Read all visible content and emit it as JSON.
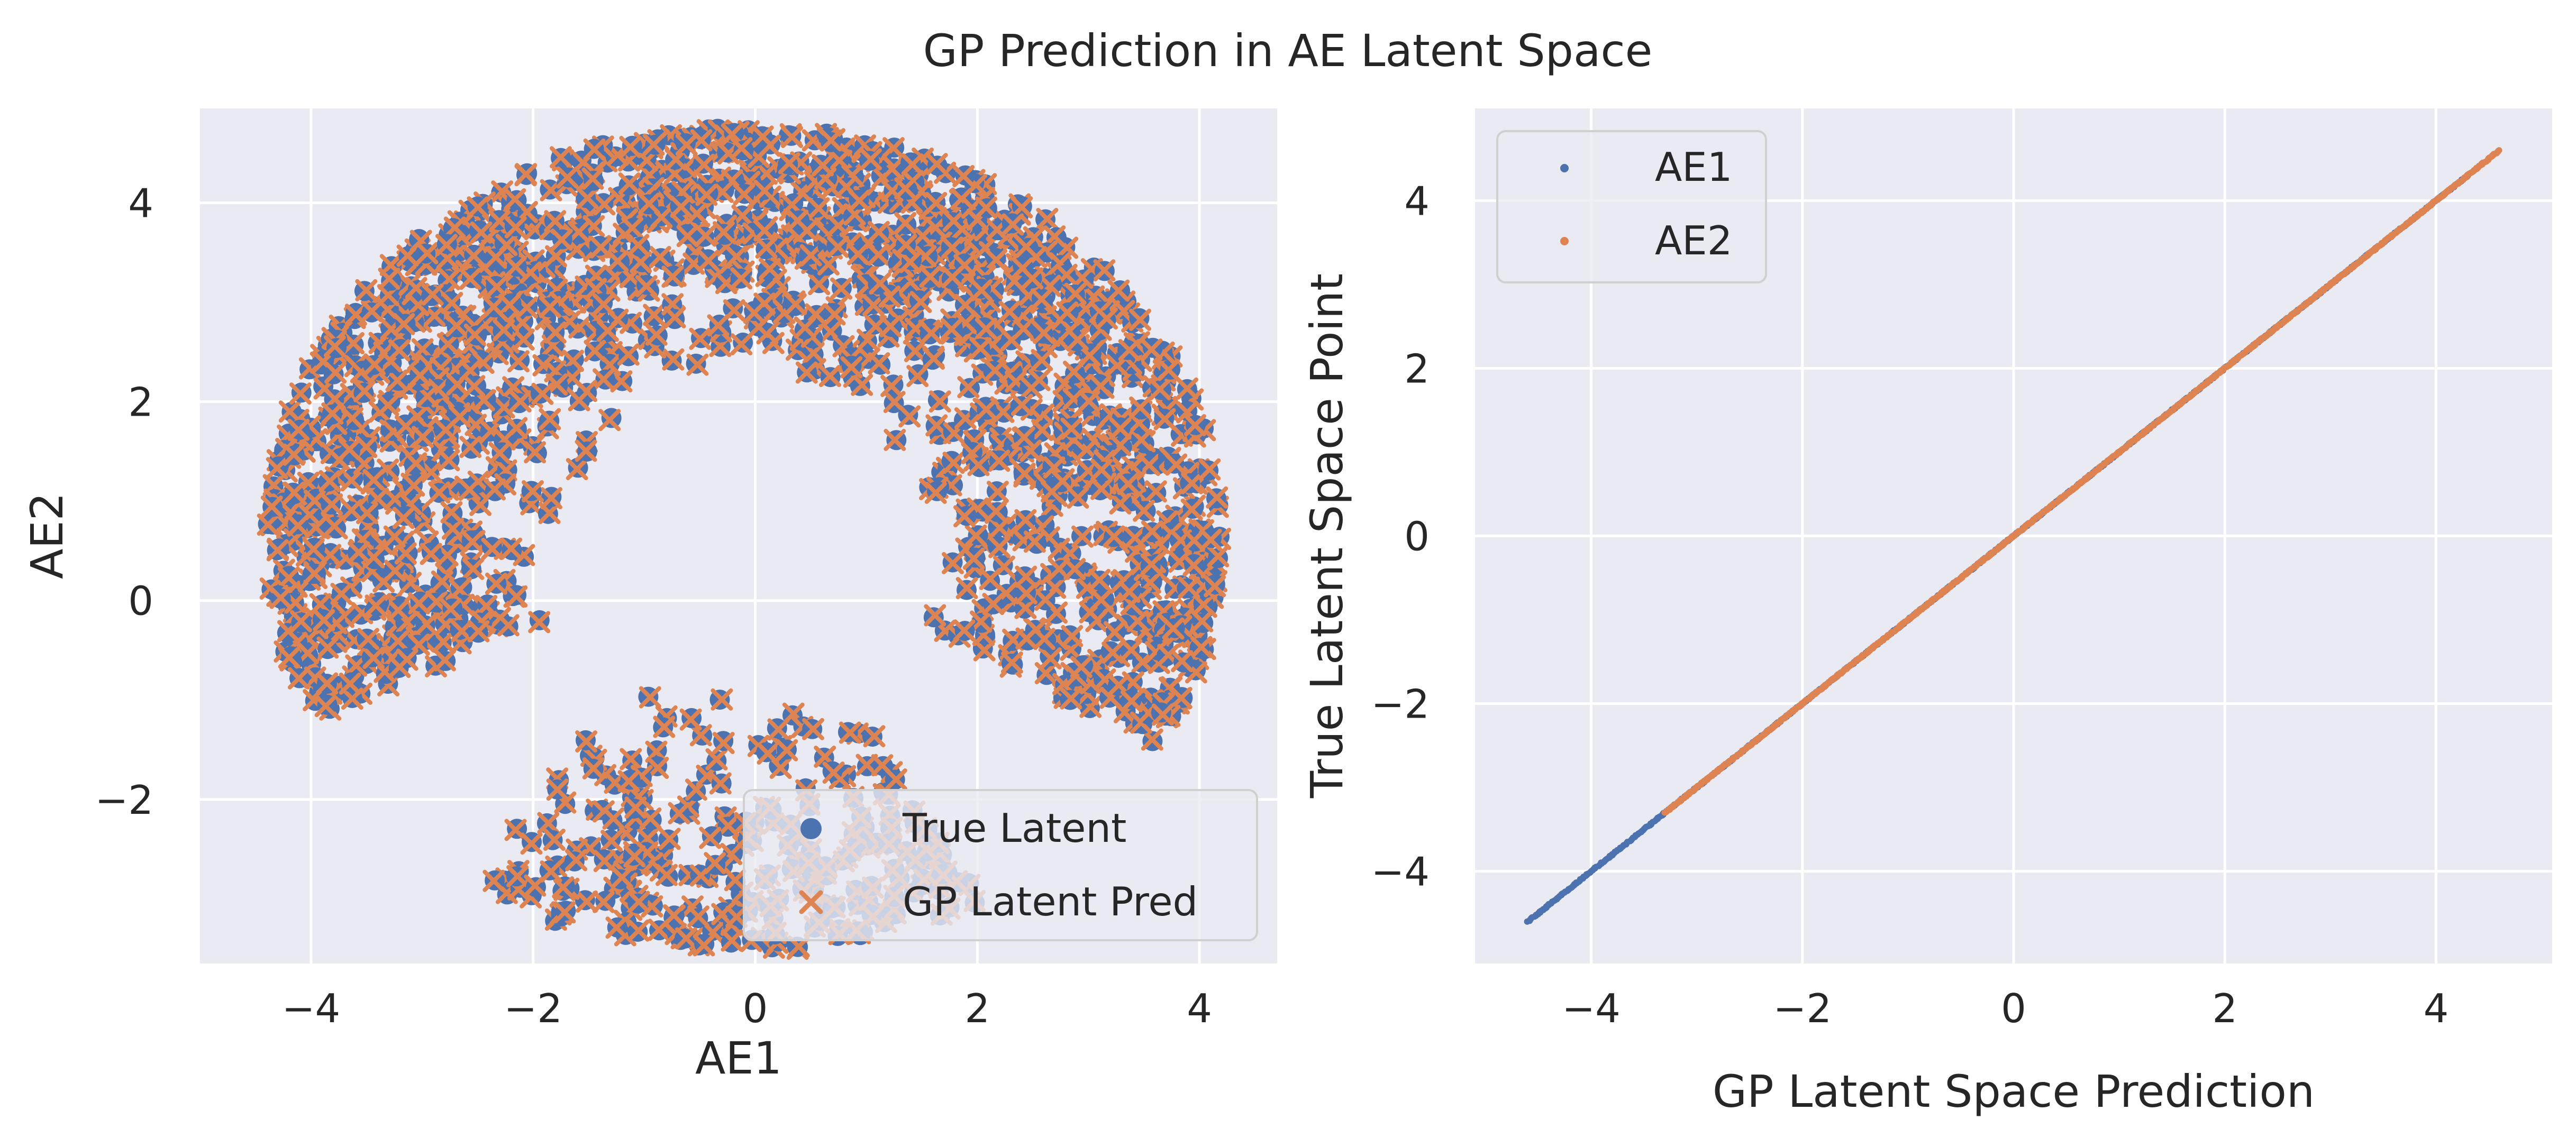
{
  "figure": {
    "title": "GP Prediction in AE Latent Space"
  },
  "colors": {
    "axes_background": "#eaeaf2",
    "grid": "#ffffff",
    "series_blue": "#4c72b0",
    "series_orange": "#dd8452",
    "text": "#262626"
  },
  "chart_data": [
    {
      "type": "scatter",
      "title": "",
      "xlabel": "AE1",
      "ylabel": "AE2",
      "xlim": [
        -5.0,
        4.7
      ],
      "ylim": [
        -3.65,
        4.95
      ],
      "xticks": [
        -4,
        -2,
        0,
        2,
        4
      ],
      "yticks": [
        -2,
        0,
        2,
        4
      ],
      "xtick_labels": [
        "−4",
        "−2",
        "0",
        "2",
        "4"
      ],
      "ytick_labels": [
        "−2",
        "0",
        "2",
        "4"
      ],
      "grid": true,
      "legend": "lower-right",
      "shape": "crescent (C-shaped ring opening to the right)",
      "center": [
        -0.1,
        0.6
      ],
      "inner_radius": 1.6,
      "outer_radius": 4.3,
      "arc_start_deg": -30,
      "arc_end_deg": 205,
      "lower_arm_start_deg": 235,
      "lower_arm_end_deg": 300,
      "point_count": 1800,
      "series": [
        {
          "name": "True Latent",
          "marker": "circle",
          "color": "#4c72b0"
        },
        {
          "name": "GP Latent Pred",
          "marker": "x",
          "color": "#dd8452"
        }
      ]
    },
    {
      "type": "scatter",
      "title": "",
      "xlabel": "GP Latent Space Prediction",
      "ylabel": "True Latent Space Point",
      "xlim": [
        -5.1,
        5.1
      ],
      "ylim": [
        -5.1,
        5.1
      ],
      "xticks": [
        -4,
        -2,
        0,
        2,
        4
      ],
      "yticks": [
        -4,
        -2,
        0,
        2,
        4
      ],
      "xtick_labels": [
        "−4",
        "−2",
        "0",
        "2",
        "4"
      ],
      "ytick_labels": [
        "−4",
        "−2",
        "0",
        "2",
        "4"
      ],
      "grid": true,
      "legend": "upper-left",
      "relation": "y = x",
      "series": [
        {
          "name": "AE1",
          "marker": "dot",
          "color": "#4c72b0",
          "range": [
            -4.6,
            4.3
          ]
        },
        {
          "name": "AE2",
          "marker": "dot",
          "color": "#dd8452",
          "range": [
            -3.3,
            4.6
          ]
        }
      ]
    }
  ]
}
